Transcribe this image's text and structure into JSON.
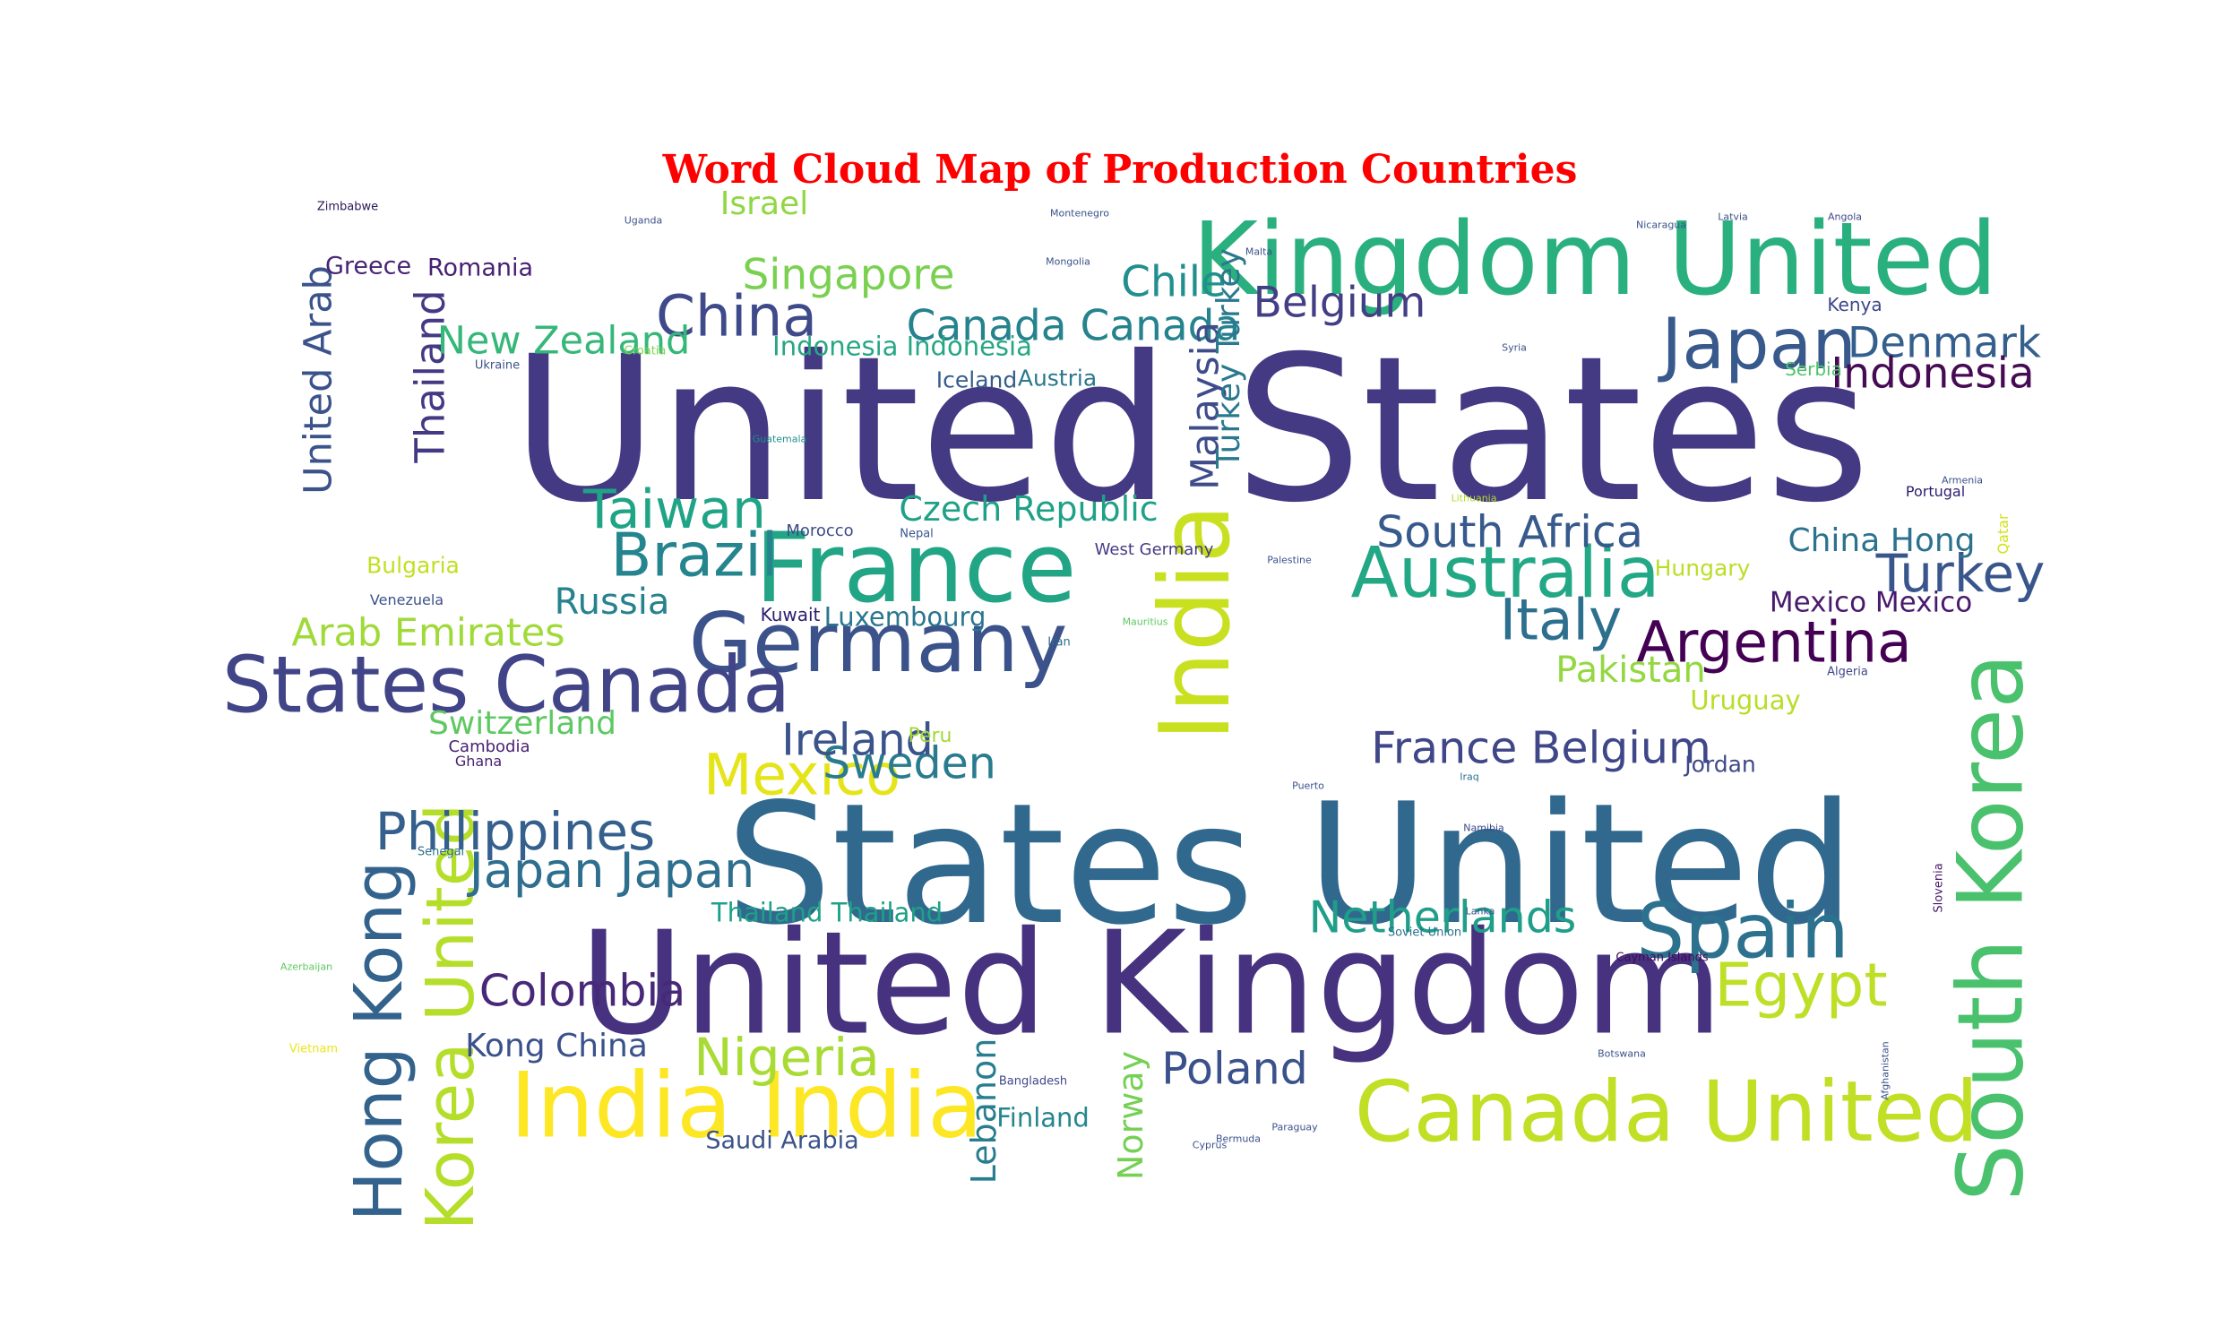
{
  "chart_data": {
    "type": "wordcloud",
    "title": "Word Cloud Map of Production Countries",
    "title_color": "#ff0000",
    "colormap": "viridis",
    "background": "#ffffff",
    "words": [
      {
        "text": "United States",
        "weight": 1.0,
        "color": "#443983",
        "vertical": false
      },
      {
        "text": "States United",
        "weight": 0.83,
        "color": "#31688e",
        "vertical": false
      },
      {
        "text": "United Kingdom",
        "weight": 0.71,
        "color": "#46327e",
        "vertical": false
      },
      {
        "text": "Kingdom United",
        "weight": 0.5,
        "color": "#2ab07f",
        "vertical": false
      },
      {
        "text": "India",
        "weight": 0.48,
        "color": "#c8e020",
        "vertical": true
      },
      {
        "text": "France",
        "weight": 0.48,
        "color": "#21a585",
        "vertical": false
      },
      {
        "text": "India India",
        "weight": 0.45,
        "color": "#fde725",
        "vertical": false
      },
      {
        "text": "South Korea",
        "weight": 0.45,
        "color": "#4ac16d",
        "vertical": true
      },
      {
        "text": "Canada United",
        "weight": 0.42,
        "color": "#c0df25",
        "vertical": false
      },
      {
        "text": "Germany",
        "weight": 0.41,
        "color": "#3b528b",
        "vertical": false
      },
      {
        "text": "States Canada",
        "weight": 0.39,
        "color": "#414487",
        "vertical": false
      },
      {
        "text": "Spain",
        "weight": 0.38,
        "color": "#2c728e",
        "vertical": false
      },
      {
        "text": "Australia",
        "weight": 0.35,
        "color": "#22a884",
        "vertical": false
      },
      {
        "text": "Japan",
        "weight": 0.35,
        "color": "#38598c",
        "vertical": false
      },
      {
        "text": "Korea United",
        "weight": 0.33,
        "color": "#b5de2b",
        "vertical": true
      },
      {
        "text": "Hong Kong",
        "weight": 0.33,
        "color": "#33638d",
        "vertical": true
      },
      {
        "text": "Egypt",
        "weight": 0.3,
        "color": "#bddf26",
        "vertical": false
      },
      {
        "text": "Brazil",
        "weight": 0.3,
        "color": "#25858e",
        "vertical": false
      },
      {
        "text": "Argentina",
        "weight": 0.28,
        "color": "#440154",
        "vertical": false
      },
      {
        "text": "Mexico",
        "weight": 0.28,
        "color": "#e5e419",
        "vertical": false
      },
      {
        "text": "China",
        "weight": 0.28,
        "color": "#3e4a89",
        "vertical": false
      },
      {
        "text": "Italy",
        "weight": 0.28,
        "color": "#2d708e",
        "vertical": false
      },
      {
        "text": "Taiwan",
        "weight": 0.27,
        "color": "#20a486",
        "vertical": false
      },
      {
        "text": "Philippines",
        "weight": 0.26,
        "color": "#355f8d",
        "vertical": false
      },
      {
        "text": "Turkey",
        "weight": 0.26,
        "color": "#39568c",
        "vertical": false
      },
      {
        "text": "Nigeria",
        "weight": 0.26,
        "color": "#a8db34",
        "vertical": false
      },
      {
        "text": "Japan Japan",
        "weight": 0.24,
        "color": "#2e6e8e",
        "vertical": false
      },
      {
        "text": "France Belgium",
        "weight": 0.22,
        "color": "#3f4788",
        "vertical": false
      },
      {
        "text": "Netherlands",
        "weight": 0.22,
        "color": "#1f9e89",
        "vertical": false
      },
      {
        "text": "South Africa",
        "weight": 0.22,
        "color": "#375a8c",
        "vertical": false
      },
      {
        "text": "Sweden",
        "weight": 0.22,
        "color": "#297b8e",
        "vertical": false
      },
      {
        "text": "Ireland",
        "weight": 0.22,
        "color": "#3a538b",
        "vertical": false
      },
      {
        "text": "Poland",
        "weight": 0.22,
        "color": "#3b518b",
        "vertical": false
      },
      {
        "text": "Colombia",
        "weight": 0.22,
        "color": "#482878",
        "vertical": false
      },
      {
        "text": "Denmark",
        "weight": 0.21,
        "color": "#35608d",
        "vertical": false
      },
      {
        "text": "Indonesia",
        "weight": 0.21,
        "color": "#450c54",
        "vertical": false
      },
      {
        "text": "Canada Canada",
        "weight": 0.21,
        "color": "#25838e",
        "vertical": false
      },
      {
        "text": "Singapore",
        "weight": 0.21,
        "color": "#7ad151",
        "vertical": false
      },
      {
        "text": "Belgium",
        "weight": 0.21,
        "color": "#433e85",
        "vertical": false
      },
      {
        "text": "Chile",
        "weight": 0.21,
        "color": "#218f8d",
        "vertical": false
      },
      {
        "text": "Thailand",
        "weight": 0.2,
        "color": "#443a83",
        "vertical": true
      },
      {
        "text": "United Arab",
        "weight": 0.19,
        "color": "#3b528b",
        "vertical": true
      },
      {
        "text": "New Zealand",
        "weight": 0.19,
        "color": "#35b779",
        "vertical": false
      },
      {
        "text": "Arab Emirates",
        "weight": 0.19,
        "color": "#a0da39",
        "vertical": false
      },
      {
        "text": "Malaysia",
        "weight": 0.19,
        "color": "#3e4c8a",
        "vertical": true
      },
      {
        "text": "Turkey Turkey",
        "weight": 0.16,
        "color": "#2a788e",
        "vertical": true
      },
      {
        "text": "Czech Republic",
        "weight": 0.17,
        "color": "#1fa187",
        "vertical": false
      },
      {
        "text": "Pakistan",
        "weight": 0.18,
        "color": "#93d741",
        "vertical": false
      },
      {
        "text": "Russia",
        "weight": 0.18,
        "color": "#26828e",
        "vertical": false
      },
      {
        "text": "Lebanon",
        "weight": 0.17,
        "color": "#287d8e",
        "vertical": true
      },
      {
        "text": "Norway",
        "weight": 0.17,
        "color": "#75d054",
        "vertical": true
      },
      {
        "text": "Switzerland",
        "weight": 0.16,
        "color": "#5ec962",
        "vertical": false
      },
      {
        "text": "Kong China",
        "weight": 0.16,
        "color": "#3b518b",
        "vertical": false
      },
      {
        "text": "Israel",
        "weight": 0.16,
        "color": "#90d743",
        "vertical": false
      },
      {
        "text": "China Hong",
        "weight": 0.16,
        "color": "#2c728e",
        "vertical": false
      },
      {
        "text": "Mexico Mexico",
        "weight": 0.14,
        "color": "#481a6c",
        "vertical": false
      },
      {
        "text": "Indonesia Indonesia",
        "weight": 0.13,
        "color": "#26a784",
        "vertical": false
      },
      {
        "text": "Thailand Thailand",
        "weight": 0.13,
        "color": "#1fa088",
        "vertical": false
      },
      {
        "text": "Luxembourg",
        "weight": 0.13,
        "color": "#2a768e",
        "vertical": false
      },
      {
        "text": "Uruguay",
        "weight": 0.13,
        "color": "#b8de29",
        "vertical": false
      },
      {
        "text": "Hungary",
        "weight": 0.11,
        "color": "#bade28",
        "vertical": false
      },
      {
        "text": "Finland",
        "weight": 0.13,
        "color": "#24868e",
        "vertical": false
      },
      {
        "text": "Saudi Arabia",
        "weight": 0.12,
        "color": "#3b528b",
        "vertical": false
      },
      {
        "text": "Iceland",
        "weight": 0.11,
        "color": "#365c8d",
        "vertical": false
      },
      {
        "text": "Austria",
        "weight": 0.11,
        "color": "#2a778e",
        "vertical": false
      },
      {
        "text": "Bulgaria",
        "weight": 0.11,
        "color": "#c2df23",
        "vertical": false
      },
      {
        "text": "Greece",
        "weight": 0.12,
        "color": "#482475",
        "vertical": false
      },
      {
        "text": "Romania",
        "weight": 0.12,
        "color": "#482173",
        "vertical": false
      },
      {
        "text": "Jordan",
        "weight": 0.11,
        "color": "#3e4989",
        "vertical": false
      },
      {
        "text": "Peru",
        "weight": 0.1,
        "color": "#a2da37",
        "vertical": false
      },
      {
        "text": "Serbia",
        "weight": 0.09,
        "color": "#4ec36b",
        "vertical": false
      },
      {
        "text": "Kenya",
        "weight": 0.09,
        "color": "#3f4788",
        "vertical": false
      },
      {
        "text": "Kuwait",
        "weight": 0.09,
        "color": "#2d1e6f",
        "vertical": false
      },
      {
        "text": "Morocco",
        "weight": 0.08,
        "color": "#3e4a89",
        "vertical": false
      },
      {
        "text": "West Germany",
        "weight": 0.08,
        "color": "#443b84",
        "vertical": false
      },
      {
        "text": "Venezuela",
        "weight": 0.07,
        "color": "#3b528b",
        "vertical": false
      },
      {
        "text": "Cambodia",
        "weight": 0.08,
        "color": "#481f70",
        "vertical": false
      },
      {
        "text": "Ghana",
        "weight": 0.07,
        "color": "#482173",
        "vertical": false
      },
      {
        "text": "Senegal",
        "weight": 0.06,
        "color": "#2d708e",
        "vertical": false
      },
      {
        "text": "Iran",
        "weight": 0.06,
        "color": "#2e6d8e",
        "vertical": false
      },
      {
        "text": "Nepal",
        "weight": 0.06,
        "color": "#3a548c",
        "vertical": false
      },
      {
        "text": "Portugal",
        "weight": 0.07,
        "color": "#2d1e6f",
        "vertical": false
      },
      {
        "text": "Qatar",
        "weight": 0.07,
        "color": "#d2e21b",
        "vertical": true
      },
      {
        "text": "Algeria",
        "weight": 0.06,
        "color": "#404688",
        "vertical": false
      },
      {
        "text": "Bangladesh",
        "weight": 0.06,
        "color": "#3f4889",
        "vertical": false
      },
      {
        "text": "Cayman Islands",
        "weight": 0.06,
        "color": "#46085c",
        "vertical": false
      },
      {
        "text": "Soviet Union",
        "weight": 0.06,
        "color": "#2c718e",
        "vertical": false
      },
      {
        "text": "Slovenia",
        "weight": 0.06,
        "color": "#481769",
        "vertical": true
      },
      {
        "text": "Ukraine",
        "weight": 0.06,
        "color": "#3b528b",
        "vertical": false
      },
      {
        "text": "Croatia",
        "weight": 0.06,
        "color": "#7fd34e",
        "vertical": false
      },
      {
        "text": "Zimbabwe",
        "weight": 0.06,
        "color": "#2a1858",
        "vertical": false
      },
      {
        "text": "Vietnam",
        "weight": 0.06,
        "color": "#ece51b",
        "vertical": false
      },
      {
        "text": "Guatemala",
        "weight": 0.05,
        "color": "#21918c",
        "vertical": false
      },
      {
        "text": "Malta",
        "weight": 0.05,
        "color": "#3b528b",
        "vertical": false
      },
      {
        "text": "Namibia",
        "weight": 0.05,
        "color": "#3e4a89",
        "vertical": false
      },
      {
        "text": "Puerto",
        "weight": 0.05,
        "color": "#3b518b",
        "vertical": false
      },
      {
        "text": "Iraq",
        "weight": 0.05,
        "color": "#2c728e",
        "vertical": false
      },
      {
        "text": "Angola",
        "weight": 0.05,
        "color": "#3f4889",
        "vertical": false
      },
      {
        "text": "Lanka",
        "weight": 0.05,
        "color": "#3b528b",
        "vertical": false
      },
      {
        "text": "Cyprus",
        "weight": 0.05,
        "color": "#3b528b",
        "vertical": false
      },
      {
        "text": "Bermuda",
        "weight": 0.05,
        "color": "#3b528b",
        "vertical": false
      },
      {
        "text": "Uganda",
        "weight": 0.05,
        "color": "#3b528b",
        "vertical": false
      },
      {
        "text": "Montenegro",
        "weight": 0.05,
        "color": "#3b528b",
        "vertical": false
      },
      {
        "text": "Nicaragua",
        "weight": 0.05,
        "color": "#3b528b",
        "vertical": false
      },
      {
        "text": "Latvia",
        "weight": 0.05,
        "color": "#3b528b",
        "vertical": false
      },
      {
        "text": "Mongolia",
        "weight": 0.05,
        "color": "#3b528b",
        "vertical": false
      },
      {
        "text": "Lithuania",
        "weight": 0.05,
        "color": "#b5de2b",
        "vertical": false
      },
      {
        "text": "Botswana",
        "weight": 0.05,
        "color": "#3b528b",
        "vertical": false
      },
      {
        "text": "Afghanistan",
        "weight": 0.05,
        "color": "#3b528b",
        "vertical": true
      },
      {
        "text": "Azerbaijan",
        "weight": 0.05,
        "color": "#5ec962",
        "vertical": false
      },
      {
        "text": "Armenia",
        "weight": 0.05,
        "color": "#3b528b",
        "vertical": false
      },
      {
        "text": "Mauritius",
        "weight": 0.05,
        "color": "#5ec962",
        "vertical": false
      },
      {
        "text": "Palestine",
        "weight": 0.05,
        "color": "#3b528b",
        "vertical": false
      },
      {
        "text": "Syria",
        "weight": 0.05,
        "color": "#3b528b",
        "vertical": false
      },
      {
        "text": "Paraguay",
        "weight": 0.05,
        "color": "#3b528b",
        "vertical": false
      }
    ]
  }
}
